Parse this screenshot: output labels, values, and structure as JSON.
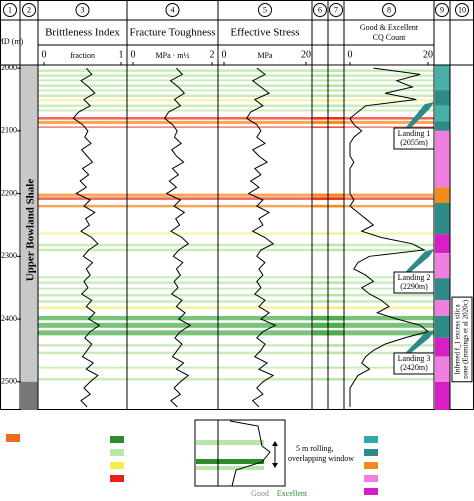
{
  "columns": [
    "1",
    "2",
    "3",
    "4",
    "5",
    "6",
    "7",
    "8",
    "9",
    "10"
  ],
  "depth_axis": {
    "label": "MD (m)",
    "ylim": [
      1995,
      2545
    ],
    "yticks": [
      2000,
      2100,
      2200,
      2300,
      2400,
      2500
    ]
  },
  "formation": "Upper Bowland Shale",
  "chart_data": [
    {
      "type": "line",
      "title": "Brittleness Index",
      "unit": "fraction",
      "xlim": [
        0,
        1
      ],
      "xticks": [
        0,
        1
      ],
      "color": "#000000",
      "depth": [
        2000,
        2010,
        2020,
        2030,
        2040,
        2050,
        2060,
        2070,
        2080,
        2090,
        2100,
        2110,
        2120,
        2130,
        2140,
        2150,
        2160,
        2170,
        2180,
        2190,
        2200,
        2210,
        2220,
        2230,
        2240,
        2250,
        2260,
        2270,
        2280,
        2290,
        2300,
        2310,
        2320,
        2330,
        2340,
        2350,
        2360,
        2370,
        2380,
        2390,
        2400,
        2410,
        2420,
        2430,
        2440,
        2450,
        2460,
        2470,
        2480,
        2490,
        2500,
        2510,
        2520,
        2530,
        2540
      ],
      "values": [
        0.55,
        0.62,
        0.48,
        0.58,
        0.66,
        0.52,
        0.6,
        0.45,
        0.38,
        0.5,
        0.57,
        0.53,
        0.61,
        0.49,
        0.56,
        0.63,
        0.5,
        0.58,
        0.47,
        0.55,
        0.42,
        0.6,
        0.52,
        0.66,
        0.54,
        0.59,
        0.48,
        0.62,
        0.7,
        0.58,
        0.51,
        0.63,
        0.55,
        0.6,
        0.52,
        0.57,
        0.49,
        0.62,
        0.55,
        0.66,
        0.58,
        0.72,
        0.6,
        0.53,
        0.62,
        0.56,
        0.5,
        0.64,
        0.55,
        0.7,
        0.6,
        0.52,
        0.6,
        0.48,
        0.56
      ]
    },
    {
      "type": "line",
      "title": "Fracture Toughness",
      "unit": "MPa · m½",
      "xlim": [
        0,
        2
      ],
      "xticks": [
        0,
        2
      ],
      "color": "#000000",
      "depth": [
        2000,
        2010,
        2020,
        2030,
        2040,
        2050,
        2060,
        2070,
        2080,
        2090,
        2100,
        2110,
        2120,
        2130,
        2140,
        2150,
        2160,
        2170,
        2180,
        2190,
        2200,
        2210,
        2220,
        2230,
        2240,
        2250,
        2260,
        2270,
        2280,
        2290,
        2300,
        2310,
        2320,
        2330,
        2340,
        2350,
        2360,
        2370,
        2380,
        2390,
        2400,
        2410,
        2420,
        2430,
        2440,
        2450,
        2460,
        2470,
        2480,
        2490,
        2500,
        2510,
        2520,
        2530,
        2540
      ],
      "values": [
        1.1,
        1.25,
        0.95,
        1.15,
        1.3,
        1.05,
        1.2,
        0.9,
        0.8,
        1.0,
        1.12,
        1.05,
        1.22,
        0.98,
        1.1,
        1.28,
        1.0,
        1.15,
        0.92,
        1.1,
        0.85,
        1.2,
        1.04,
        1.3,
        1.08,
        1.18,
        0.96,
        1.24,
        1.4,
        1.16,
        1.02,
        1.26,
        1.1,
        1.2,
        1.04,
        1.14,
        0.98,
        1.24,
        1.1,
        1.32,
        1.16,
        1.45,
        1.2,
        1.06,
        1.24,
        1.12,
        1.0,
        1.28,
        1.1,
        1.4,
        1.2,
        1.04,
        1.2,
        0.96,
        1.12
      ]
    },
    {
      "type": "line",
      "title": "Effective Stress",
      "unit": "MPa",
      "xlim": [
        0,
        20
      ],
      "xticks": [
        0,
        20
      ],
      "color": "#000000",
      "depth": [
        2000,
        2010,
        2020,
        2030,
        2040,
        2050,
        2060,
        2070,
        2080,
        2090,
        2100,
        2110,
        2120,
        2130,
        2140,
        2150,
        2160,
        2170,
        2180,
        2190,
        2200,
        2210,
        2220,
        2230,
        2240,
        2250,
        2260,
        2270,
        2280,
        2290,
        2300,
        2310,
        2320,
        2330,
        2340,
        2350,
        2360,
        2370,
        2380,
        2390,
        2400,
        2410,
        2420,
        2430,
        2440,
        2450,
        2460,
        2470,
        2480,
        2490,
        2500,
        2510,
        2520,
        2530,
        2540
      ],
      "values": [
        8,
        10,
        7,
        9,
        11,
        7.5,
        9.5,
        6.5,
        5.5,
        8,
        9,
        8,
        10,
        7,
        8.5,
        10.5,
        7.5,
        9,
        6.5,
        8.5,
        6,
        9.5,
        8,
        11,
        8.5,
        9.5,
        7,
        10,
        12,
        9,
        8,
        10,
        8.5,
        9.5,
        8,
        9,
        7.5,
        10,
        8.5,
        11,
        9,
        12.5,
        9.5,
        8,
        10,
        9,
        7.5,
        10.5,
        8.5,
        12,
        9.5,
        8,
        9.5,
        7,
        8.5
      ]
    },
    {
      "type": "line",
      "title": [
        "Good & Excellent",
        "CQ Count"
      ],
      "xlim": [
        0,
        20
      ],
      "xticks": [
        0,
        20
      ],
      "color": "#000000",
      "depth": [
        2000,
        2010,
        2020,
        2030,
        2040,
        2050,
        2060,
        2070,
        2080,
        2090,
        2100,
        2110,
        2120,
        2130,
        2140,
        2150,
        2160,
        2170,
        2180,
        2190,
        2200,
        2210,
        2220,
        2230,
        2240,
        2250,
        2260,
        2270,
        2280,
        2290,
        2300,
        2310,
        2320,
        2330,
        2340,
        2350,
        2360,
        2370,
        2380,
        2390,
        2400,
        2410,
        2420,
        2430,
        2440,
        2450,
        2460,
        2470,
        2480,
        2490,
        2500,
        2510,
        2520,
        2530,
        2540
      ],
      "values": [
        6,
        18,
        12,
        16,
        9,
        17,
        4,
        2,
        0,
        1,
        3,
        1,
        0,
        0,
        0,
        1,
        0,
        0,
        0,
        0,
        0,
        1,
        0,
        2,
        4,
        6,
        3,
        8,
        16,
        19,
        5,
        2,
        1,
        4,
        6,
        3,
        5,
        8,
        10,
        7,
        12,
        18,
        20,
        14,
        9,
        6,
        4,
        3,
        5,
        2,
        1,
        0,
        0,
        0,
        0
      ]
    }
  ],
  "zones": [
    {
      "top": 2002,
      "base": 2006,
      "color": "#b8e6a4"
    },
    {
      "top": 2010,
      "base": 2014,
      "color": "#b8e6a4"
    },
    {
      "top": 2018,
      "base": 2021,
      "color": "#b8e6a4"
    },
    {
      "top": 2026,
      "base": 2030,
      "color": "#b8e6a4"
    },
    {
      "top": 2034,
      "base": 2037,
      "color": "#b8e6a4"
    },
    {
      "top": 2042,
      "base": 2046,
      "color": "#b8e6a4"
    },
    {
      "top": 2050,
      "base": 2053,
      "color": "#f3ef7a"
    },
    {
      "top": 2058,
      "base": 2062,
      "color": "#b8e6a4"
    },
    {
      "top": 2066,
      "base": 2069,
      "color": "#b8e6a4"
    },
    {
      "top": 2078,
      "base": 2082,
      "color": "#e8301c"
    },
    {
      "top": 2084,
      "base": 2089,
      "color": "#f28a1e"
    },
    {
      "top": 2093,
      "base": 2095,
      "color": "#e8301c"
    },
    {
      "top": 2200,
      "base": 2205,
      "color": "#f28a1e"
    },
    {
      "top": 2206,
      "base": 2210,
      "color": "#e8301c"
    },
    {
      "top": 2218,
      "base": 2222,
      "color": "#f28a1e"
    },
    {
      "top": 2262,
      "base": 2265,
      "color": "#f3ef7a"
    },
    {
      "top": 2280,
      "base": 2284,
      "color": "#b8e6a4"
    },
    {
      "top": 2288,
      "base": 2292,
      "color": "#b8e6a4"
    },
    {
      "top": 2332,
      "base": 2335,
      "color": "#b8e6a4"
    },
    {
      "top": 2340,
      "base": 2344,
      "color": "#b8e6a4"
    },
    {
      "top": 2350,
      "base": 2353,
      "color": "#b8e6a4"
    },
    {
      "top": 2360,
      "base": 2364,
      "color": "#b8e6a4"
    },
    {
      "top": 2370,
      "base": 2374,
      "color": "#b8e6a4"
    },
    {
      "top": 2380,
      "base": 2384,
      "color": "#f3ef7a"
    },
    {
      "top": 2395,
      "base": 2402,
      "color": "#4caf4c"
    },
    {
      "top": 2406,
      "base": 2414,
      "color": "#4caf4c"
    },
    {
      "top": 2418,
      "base": 2426,
      "color": "#4caf4c"
    },
    {
      "top": 2440,
      "base": 2444,
      "color": "#b8e6a4"
    },
    {
      "top": 2452,
      "base": 2456,
      "color": "#b8e6a4"
    },
    {
      "top": 2476,
      "base": 2479,
      "color": "#b8e6a4"
    },
    {
      "top": 2494,
      "base": 2498,
      "color": "#b8e6a4"
    }
  ],
  "facies": [
    {
      "top": 1995,
      "base": 2035,
      "color": "#48b0a8"
    },
    {
      "top": 2035,
      "base": 2060,
      "color": "#2e8a86"
    },
    {
      "top": 2060,
      "base": 2085,
      "color": "#48b0a8"
    },
    {
      "top": 2085,
      "base": 2100,
      "color": "#2e8a86"
    },
    {
      "top": 2100,
      "base": 2190,
      "color": "#ee7ee0"
    },
    {
      "top": 2190,
      "base": 2215,
      "color": "#f28a1e"
    },
    {
      "top": 2215,
      "base": 2265,
      "color": "#2e8a86"
    },
    {
      "top": 2265,
      "base": 2295,
      "color": "#d81fc4"
    },
    {
      "top": 2295,
      "base": 2335,
      "color": "#ee7ee0"
    },
    {
      "top": 2335,
      "base": 2370,
      "color": "#2e8a86"
    },
    {
      "top": 2370,
      "base": 2395,
      "color": "#ee7ee0"
    },
    {
      "top": 2395,
      "base": 2430,
      "color": "#2e8a86"
    },
    {
      "top": 2430,
      "base": 2460,
      "color": "#d81fc4"
    },
    {
      "top": 2460,
      "base": 2500,
      "color": "#ee7ee0"
    },
    {
      "top": 2500,
      "base": 2545,
      "color": "#d81fc4"
    }
  ],
  "landings": [
    {
      "name": "Landing 1",
      "depth": 2055,
      "depth_label": "(2055m)"
    },
    {
      "name": "Landing 2",
      "depth": 2290,
      "depth_label": "(2290m)"
    },
    {
      "name": "Landing 3",
      "depth": 2420,
      "depth_label": "(2420m)"
    }
  ],
  "silica_zone": [
    "Inferred f_1 excess silica",
    "zone (Emmings et al 2020c)"
  ],
  "inset": {
    "window": [
      "5 m rolling,",
      "overlapping window"
    ],
    "good": "Good",
    "excellent": "Excellent"
  }
}
